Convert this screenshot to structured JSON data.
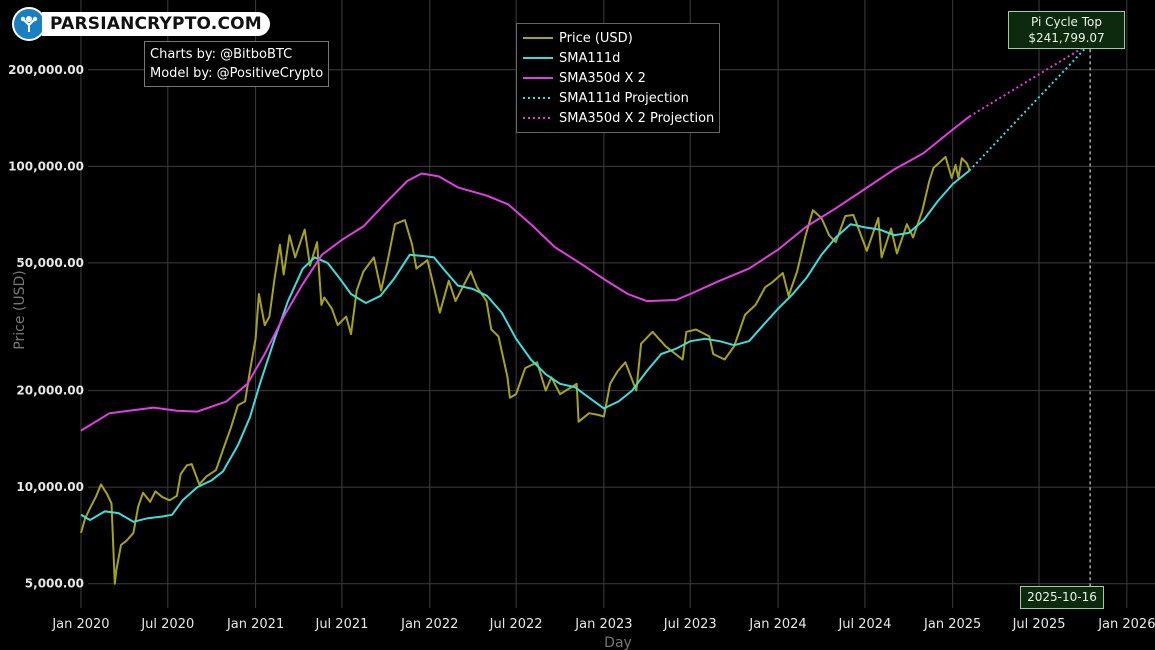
{
  "logo": {
    "text": "PARSIANCRYPTO.COM"
  },
  "credits": {
    "line1": "Charts by: @BitboBTC",
    "line2": "Model by: @PositiveCrypto"
  },
  "legend": {
    "items": [
      {
        "label": "Price (USD)",
        "color": "#a6a31b",
        "style": "solid"
      },
      {
        "label": "SMA111d",
        "color": "#3fdcdc",
        "style": "solid"
      },
      {
        "label": "SMA350d X 2",
        "color": "#e040e0",
        "style": "solid"
      },
      {
        "label": "SMA111d Projection",
        "color": "#3fdcdc",
        "style": "dotted"
      },
      {
        "label": "SMA350d X 2 Projection",
        "color": "#e040e0",
        "style": "dotted"
      }
    ]
  },
  "annotations": {
    "pi_title": "Pi Cycle Top",
    "pi_value": "$241,799.07",
    "pi_date": "2025-10-16"
  },
  "chart_data": {
    "type": "line",
    "xlabel": "Day",
    "ylabel": "Price (USD)",
    "y_scale": "log",
    "grid": true,
    "background": "#000000",
    "legend_position": "top-center",
    "xlim": [
      "2019-12-30",
      "2026-03-01"
    ],
    "ylim": [
      4200,
      330000
    ],
    "x_ticks": [
      {
        "date": "2020-01-01",
        "label": "Jan 2020"
      },
      {
        "date": "2020-07-01",
        "label": "Jul 2020"
      },
      {
        "date": "2021-01-01",
        "label": "Jan 2021"
      },
      {
        "date": "2021-07-01",
        "label": "Jul 2021"
      },
      {
        "date": "2022-01-01",
        "label": "Jan 2022"
      },
      {
        "date": "2022-07-01",
        "label": "Jul 2022"
      },
      {
        "date": "2023-01-01",
        "label": "Jan 2023"
      },
      {
        "date": "2023-07-01",
        "label": "Jul 2023"
      },
      {
        "date": "2024-01-01",
        "label": "Jan 2024"
      },
      {
        "date": "2024-07-01",
        "label": "Jul 2024"
      },
      {
        "date": "2025-01-01",
        "label": "Jan 2025"
      },
      {
        "date": "2025-07-01",
        "label": "Jul 2025"
      },
      {
        "date": "2026-01-01",
        "label": "Jan 2026"
      }
    ],
    "y_ticks": [
      {
        "value": 5000,
        "label": "5,000.00"
      },
      {
        "value": 10000,
        "label": "10,000.00"
      },
      {
        "value": 20000,
        "label": "20,000.00"
      },
      {
        "value": 50000,
        "label": "50,000.00"
      },
      {
        "value": 100000,
        "label": "100,000.00"
      },
      {
        "value": 200000,
        "label": "200,000.00"
      }
    ],
    "series": [
      {
        "name": "Price (USD)",
        "color": "#a6a31b",
        "style": "solid",
        "points": [
          [
            "2020-01-01",
            7200
          ],
          [
            "2020-01-10",
            8000
          ],
          [
            "2020-01-20",
            8600
          ],
          [
            "2020-02-01",
            9300
          ],
          [
            "2020-02-12",
            10200
          ],
          [
            "2020-02-25",
            9500
          ],
          [
            "2020-03-05",
            8900
          ],
          [
            "2020-03-12",
            5000
          ],
          [
            "2020-03-15",
            5500
          ],
          [
            "2020-03-25",
            6600
          ],
          [
            "2020-04-05",
            6800
          ],
          [
            "2020-04-20",
            7200
          ],
          [
            "2020-04-30",
            8700
          ],
          [
            "2020-05-10",
            9600
          ],
          [
            "2020-05-25",
            9000
          ],
          [
            "2020-06-05",
            9700
          ],
          [
            "2020-06-20",
            9300
          ],
          [
            "2020-07-05",
            9100
          ],
          [
            "2020-07-20",
            9400
          ],
          [
            "2020-07-28",
            11000
          ],
          [
            "2020-08-10",
            11700
          ],
          [
            "2020-08-20",
            11800
          ],
          [
            "2020-09-05",
            10200
          ],
          [
            "2020-09-20",
            10800
          ],
          [
            "2020-10-10",
            11300
          ],
          [
            "2020-10-25",
            13100
          ],
          [
            "2020-11-10",
            15300
          ],
          [
            "2020-11-25",
            18000
          ],
          [
            "2020-12-10",
            18500
          ],
          [
            "2020-12-20",
            23000
          ],
          [
            "2021-01-01",
            29000
          ],
          [
            "2021-01-08",
            40000
          ],
          [
            "2021-01-20",
            32000
          ],
          [
            "2021-01-30",
            34000
          ],
          [
            "2021-02-10",
            45000
          ],
          [
            "2021-02-21",
            57000
          ],
          [
            "2021-03-01",
            46000
          ],
          [
            "2021-03-13",
            61000
          ],
          [
            "2021-03-25",
            52000
          ],
          [
            "2021-04-14",
            63500
          ],
          [
            "2021-04-25",
            49000
          ],
          [
            "2021-05-10",
            58000
          ],
          [
            "2021-05-19",
            37000
          ],
          [
            "2021-05-25",
            39000
          ],
          [
            "2021-06-10",
            36000
          ],
          [
            "2021-06-22",
            32000
          ],
          [
            "2021-07-10",
            34000
          ],
          [
            "2021-07-20",
            30000
          ],
          [
            "2021-08-01",
            41000
          ],
          [
            "2021-08-15",
            47000
          ],
          [
            "2021-09-06",
            52000
          ],
          [
            "2021-09-21",
            41000
          ],
          [
            "2021-10-05",
            51000
          ],
          [
            "2021-10-20",
            66000
          ],
          [
            "2021-11-10",
            68000
          ],
          [
            "2021-11-25",
            57000
          ],
          [
            "2021-12-04",
            48000
          ],
          [
            "2021-12-27",
            51000
          ],
          [
            "2022-01-10",
            42000
          ],
          [
            "2022-01-22",
            35000
          ],
          [
            "2022-02-10",
            44000
          ],
          [
            "2022-02-24",
            38000
          ],
          [
            "2022-03-28",
            47000
          ],
          [
            "2022-04-10",
            42000
          ],
          [
            "2022-04-30",
            38000
          ],
          [
            "2022-05-10",
            31000
          ],
          [
            "2022-05-25",
            29500
          ],
          [
            "2022-06-13",
            22000
          ],
          [
            "2022-06-18",
            19000
          ],
          [
            "2022-07-01",
            19500
          ],
          [
            "2022-07-20",
            23500
          ],
          [
            "2022-08-14",
            24500
          ],
          [
            "2022-09-01",
            20000
          ],
          [
            "2022-09-13",
            22000
          ],
          [
            "2022-10-01",
            19500
          ],
          [
            "2022-10-25",
            20500
          ],
          [
            "2022-11-05",
            21000
          ],
          [
            "2022-11-09",
            16000
          ],
          [
            "2022-12-01",
            17000
          ],
          [
            "2022-12-20",
            16800
          ],
          [
            "2023-01-01",
            16600
          ],
          [
            "2023-01-14",
            21000
          ],
          [
            "2023-01-30",
            23000
          ],
          [
            "2023-02-15",
            24500
          ],
          [
            "2023-03-10",
            20000
          ],
          [
            "2023-03-20",
            28000
          ],
          [
            "2023-04-13",
            30500
          ],
          [
            "2023-05-10",
            27500
          ],
          [
            "2023-06-15",
            25000
          ],
          [
            "2023-06-23",
            30500
          ],
          [
            "2023-07-13",
            31000
          ],
          [
            "2023-08-10",
            29500
          ],
          [
            "2023-08-18",
            26000
          ],
          [
            "2023-09-11",
            25000
          ],
          [
            "2023-10-01",
            27500
          ],
          [
            "2023-10-24",
            34500
          ],
          [
            "2023-11-15",
            37000
          ],
          [
            "2023-12-05",
            42000
          ],
          [
            "2023-12-20",
            43500
          ],
          [
            "2024-01-11",
            46500
          ],
          [
            "2024-01-23",
            39500
          ],
          [
            "2024-02-10",
            47000
          ],
          [
            "2024-02-28",
            61000
          ],
          [
            "2024-03-14",
            73000
          ],
          [
            "2024-04-01",
            69000
          ],
          [
            "2024-04-17",
            61000
          ],
          [
            "2024-05-01",
            58000
          ],
          [
            "2024-05-21",
            70000
          ],
          [
            "2024-06-07",
            70500
          ],
          [
            "2024-07-05",
            54500
          ],
          [
            "2024-07-29",
            69000
          ],
          [
            "2024-08-05",
            52000
          ],
          [
            "2024-08-25",
            64000
          ],
          [
            "2024-09-06",
            53500
          ],
          [
            "2024-09-27",
            66000
          ],
          [
            "2024-10-10",
            60000
          ],
          [
            "2024-10-29",
            72500
          ],
          [
            "2024-11-13",
            90000
          ],
          [
            "2024-11-22",
            99000
          ],
          [
            "2024-12-05",
            103000
          ],
          [
            "2024-12-17",
            107000
          ],
          [
            "2024-12-30",
            92000
          ],
          [
            "2025-01-07",
            101000
          ],
          [
            "2025-01-13",
            92000
          ],
          [
            "2025-01-20",
            106000
          ],
          [
            "2025-01-31",
            102000
          ],
          [
            "2025-02-05",
            97500
          ]
        ]
      },
      {
        "name": "SMA111d",
        "color": "#3fdcdc",
        "style": "solid",
        "points": [
          [
            "2020-01-01",
            8200
          ],
          [
            "2020-01-20",
            7900
          ],
          [
            "2020-02-20",
            8400
          ],
          [
            "2020-03-20",
            8300
          ],
          [
            "2020-04-20",
            7800
          ],
          [
            "2020-05-20",
            8000
          ],
          [
            "2020-06-20",
            8100
          ],
          [
            "2020-07-10",
            8200
          ],
          [
            "2020-08-01",
            9100
          ],
          [
            "2020-09-01",
            10000
          ],
          [
            "2020-10-01",
            10500
          ],
          [
            "2020-10-25",
            11200
          ],
          [
            "2020-11-25",
            13500
          ],
          [
            "2020-12-20",
            16500
          ],
          [
            "2021-01-10",
            21000
          ],
          [
            "2021-02-10",
            29000
          ],
          [
            "2021-03-10",
            38000
          ],
          [
            "2021-04-10",
            48000
          ],
          [
            "2021-05-05",
            52000
          ],
          [
            "2021-06-01",
            50000
          ],
          [
            "2021-06-25",
            45000
          ],
          [
            "2021-07-20",
            40000
          ],
          [
            "2021-08-20",
            37500
          ],
          [
            "2021-09-20",
            39500
          ],
          [
            "2021-10-20",
            45000
          ],
          [
            "2021-11-20",
            53000
          ],
          [
            "2021-12-20",
            52500
          ],
          [
            "2022-01-10",
            52000
          ],
          [
            "2022-02-01",
            47500
          ],
          [
            "2022-03-01",
            42500
          ],
          [
            "2022-04-01",
            41500
          ],
          [
            "2022-05-01",
            39500
          ],
          [
            "2022-06-01",
            35000
          ],
          [
            "2022-07-01",
            29000
          ],
          [
            "2022-08-01",
            25000
          ],
          [
            "2022-09-01",
            22500
          ],
          [
            "2022-10-01",
            21000
          ],
          [
            "2022-11-01",
            20500
          ],
          [
            "2022-12-01",
            19000
          ],
          [
            "2023-01-01",
            17600
          ],
          [
            "2023-02-01",
            18500
          ],
          [
            "2023-03-01",
            20000
          ],
          [
            "2023-04-01",
            23000
          ],
          [
            "2023-05-01",
            26000
          ],
          [
            "2023-06-01",
            27000
          ],
          [
            "2023-07-01",
            28500
          ],
          [
            "2023-08-01",
            29000
          ],
          [
            "2023-09-01",
            28500
          ],
          [
            "2023-10-01",
            27700
          ],
          [
            "2023-11-01",
            28500
          ],
          [
            "2023-12-01",
            32000
          ],
          [
            "2024-01-01",
            36000
          ],
          [
            "2024-02-01",
            40000
          ],
          [
            "2024-03-01",
            45000
          ],
          [
            "2024-04-01",
            53000
          ],
          [
            "2024-05-01",
            60000
          ],
          [
            "2024-06-01",
            66000
          ],
          [
            "2024-07-01",
            64500
          ],
          [
            "2024-08-01",
            63500
          ],
          [
            "2024-09-01",
            61000
          ],
          [
            "2024-10-01",
            62000
          ],
          [
            "2024-11-01",
            68000
          ],
          [
            "2024-12-01",
            78000
          ],
          [
            "2025-01-01",
            88000
          ],
          [
            "2025-02-05",
            97000
          ]
        ]
      },
      {
        "name": "SMA350d X 2",
        "color": "#e040e0",
        "style": "solid",
        "points": [
          [
            "2020-01-01",
            15000
          ],
          [
            "2020-03-01",
            17000
          ],
          [
            "2020-06-01",
            17700
          ],
          [
            "2020-07-20",
            17300
          ],
          [
            "2020-09-01",
            17200
          ],
          [
            "2020-11-01",
            18500
          ],
          [
            "2020-12-15",
            21000
          ],
          [
            "2021-01-20",
            26000
          ],
          [
            "2021-03-01",
            34000
          ],
          [
            "2021-04-10",
            43000
          ],
          [
            "2021-05-20",
            53000
          ],
          [
            "2021-07-01",
            59000
          ],
          [
            "2021-08-15",
            65000
          ],
          [
            "2021-10-01",
            77000
          ],
          [
            "2021-11-15",
            90000
          ],
          [
            "2021-12-15",
            95000
          ],
          [
            "2022-01-20",
            93000
          ],
          [
            "2022-03-01",
            86000
          ],
          [
            "2022-05-01",
            81000
          ],
          [
            "2022-06-15",
            76000
          ],
          [
            "2022-08-01",
            66000
          ],
          [
            "2022-09-20",
            56000
          ],
          [
            "2022-11-20",
            49000
          ],
          [
            "2023-01-01",
            44500
          ],
          [
            "2023-02-20",
            40000
          ],
          [
            "2023-04-01",
            38000
          ],
          [
            "2023-06-01",
            38300
          ],
          [
            "2023-07-01",
            40000
          ],
          [
            "2023-09-01",
            44000
          ],
          [
            "2023-11-01",
            48000
          ],
          [
            "2024-01-01",
            55000
          ],
          [
            "2024-03-01",
            65000
          ],
          [
            "2024-05-01",
            74000
          ],
          [
            "2024-07-01",
            85000
          ],
          [
            "2024-09-01",
            98000
          ],
          [
            "2024-11-01",
            110000
          ],
          [
            "2024-12-20",
            126000
          ],
          [
            "2025-02-05",
            143000
          ]
        ]
      },
      {
        "name": "SMA111d Projection",
        "color": "#3fdcdc",
        "style": "dotted",
        "points": [
          [
            "2025-02-05",
            97000
          ],
          [
            "2025-10-16",
            241799.07
          ]
        ]
      },
      {
        "name": "SMA350d X 2 Projection",
        "color": "#e040e0",
        "style": "dotted",
        "points": [
          [
            "2025-02-05",
            143000
          ],
          [
            "2025-10-16",
            241799.07
          ]
        ]
      }
    ],
    "annotations": [
      {
        "type": "marker",
        "date": "2025-10-16",
        "value": 241799.07,
        "label": "Pi Cycle Top $241,799.07"
      },
      {
        "type": "vline",
        "date": "2025-10-16",
        "label": "2025-10-16"
      }
    ]
  }
}
